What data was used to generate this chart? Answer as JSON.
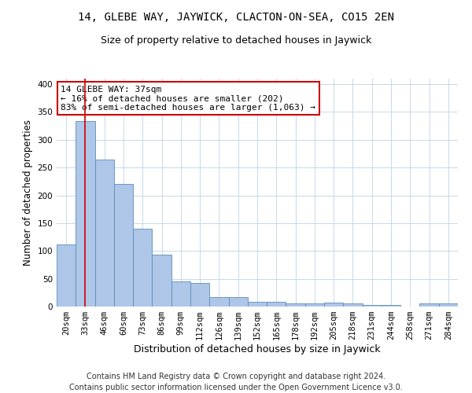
{
  "title_line1": "14, GLEBE WAY, JAYWICK, CLACTON-ON-SEA, CO15 2EN",
  "title_line2": "Size of property relative to detached houses in Jaywick",
  "xlabel": "Distribution of detached houses by size in Jaywick",
  "ylabel": "Number of detached properties",
  "categories": [
    "20sqm",
    "33sqm",
    "46sqm",
    "60sqm",
    "73sqm",
    "86sqm",
    "99sqm",
    "112sqm",
    "126sqm",
    "139sqm",
    "152sqm",
    "165sqm",
    "178sqm",
    "192sqm",
    "205sqm",
    "218sqm",
    "231sqm",
    "244sqm",
    "258sqm",
    "271sqm",
    "284sqm"
  ],
  "values": [
    112,
    333,
    265,
    221,
    140,
    93,
    45,
    43,
    17,
    17,
    9,
    9,
    6,
    6,
    7,
    6,
    3,
    3,
    0,
    5,
    5
  ],
  "bar_color": "#aec6e8",
  "bar_edge_color": "#5b8db8",
  "highlight_bar_index": 1,
  "highlight_color": "#cc0000",
  "ylim": [
    0,
    410
  ],
  "yticks": [
    0,
    50,
    100,
    150,
    200,
    250,
    300,
    350,
    400
  ],
  "annotation_title": "14 GLEBE WAY: 37sqm",
  "annotation_line1": "← 16% of detached houses are smaller (202)",
  "annotation_line2": "83% of semi-detached houses are larger (1,063) →",
  "annotation_box_color": "#ffffff",
  "annotation_box_edge": "#cc0000",
  "footnote1": "Contains HM Land Registry data © Crown copyright and database right 2024.",
  "footnote2": "Contains public sector information licensed under the Open Government Licence v3.0.",
  "bg_color": "#ffffff",
  "grid_color": "#c8d8e8",
  "title1_fontsize": 10,
  "title2_fontsize": 9,
  "tick_fontsize": 7.5,
  "xlabel_fontsize": 9,
  "ylabel_fontsize": 8.5,
  "footnote_fontsize": 7,
  "annotation_fontsize": 8
}
